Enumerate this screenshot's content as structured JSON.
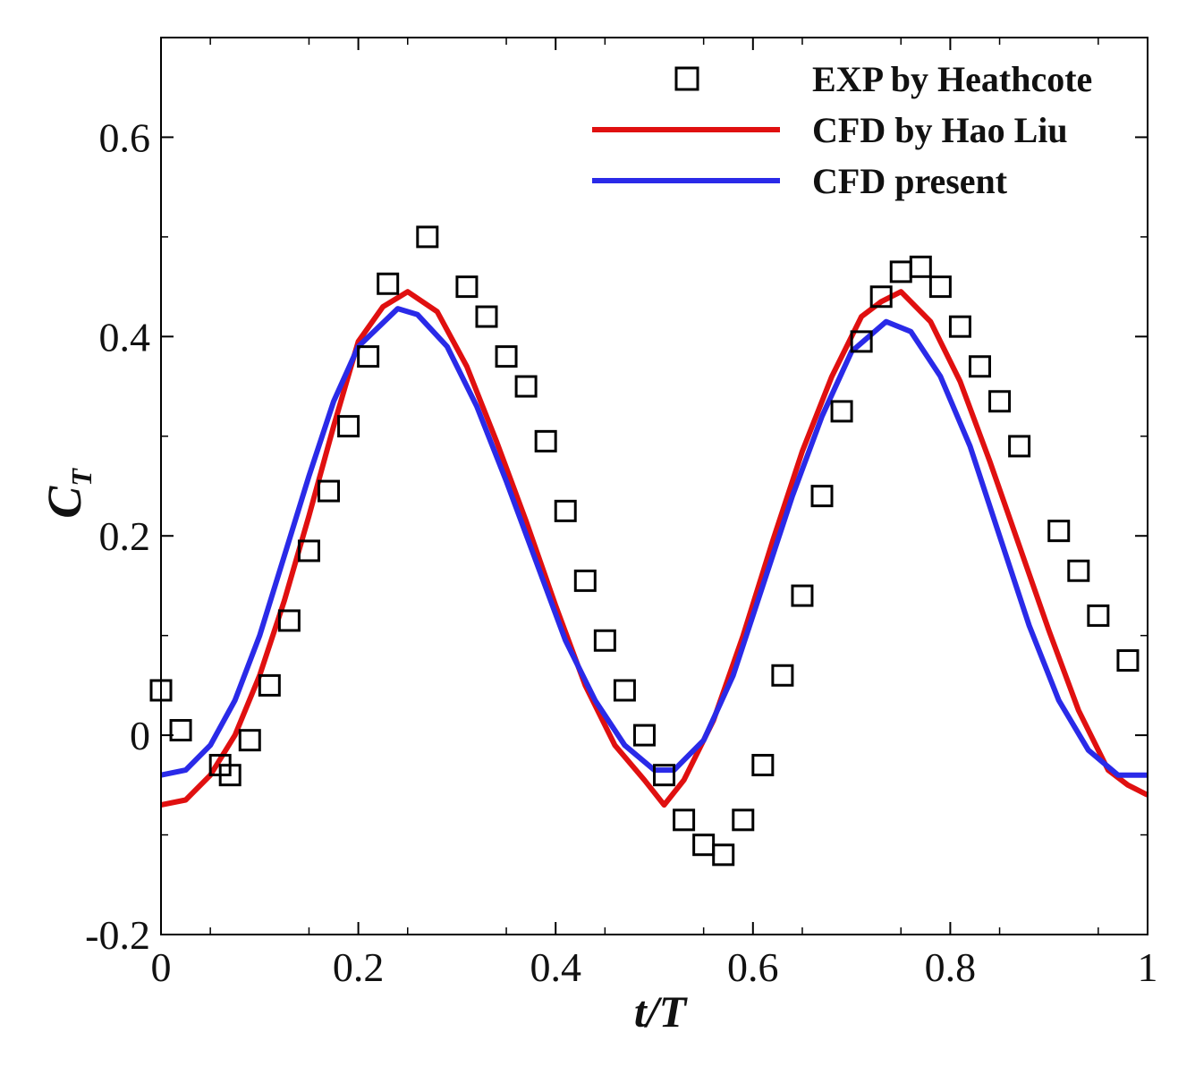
{
  "chart_data": {
    "type": "line",
    "title": "",
    "xlabel": "t/T",
    "ylabel_main": "C",
    "ylabel_sub": "T",
    "xlim": [
      0,
      1
    ],
    "ylim": [
      -0.2,
      0.7
    ],
    "xticks": [
      0,
      0.2,
      0.4,
      0.6,
      0.8,
      1
    ],
    "xtick_labels": [
      "0",
      "0.2",
      "0.4",
      "0.6",
      "0.8",
      "1"
    ],
    "yticks": [
      -0.2,
      0,
      0.2,
      0.4,
      0.6
    ],
    "ytick_labels": [
      "-0.2",
      "0",
      "0.2",
      "0.4",
      "0.6"
    ],
    "grid": false,
    "legend_position": "top-right",
    "series": [
      {
        "name": "EXP by Heathcote",
        "kind": "scatter",
        "marker": "square",
        "color": "#000000",
        "x": [
          0.0,
          0.02,
          0.06,
          0.07,
          0.09,
          0.11,
          0.13,
          0.15,
          0.17,
          0.19,
          0.21,
          0.23,
          0.27,
          0.31,
          0.33,
          0.35,
          0.37,
          0.39,
          0.41,
          0.43,
          0.45,
          0.47,
          0.49,
          0.51,
          0.53,
          0.55,
          0.57,
          0.59,
          0.61,
          0.63,
          0.65,
          0.67,
          0.69,
          0.71,
          0.73,
          0.75,
          0.77,
          0.79,
          0.81,
          0.83,
          0.85,
          0.87,
          0.91,
          0.93,
          0.95,
          0.98
        ],
        "y": [
          0.045,
          0.005,
          -0.03,
          -0.04,
          -0.005,
          0.05,
          0.115,
          0.185,
          0.245,
          0.31,
          0.38,
          0.453,
          0.5,
          0.45,
          0.42,
          0.38,
          0.35,
          0.295,
          0.225,
          0.155,
          0.095,
          0.045,
          0.0,
          -0.04,
          -0.085,
          -0.11,
          -0.12,
          -0.085,
          -0.03,
          0.06,
          0.14,
          0.24,
          0.325,
          0.395,
          0.44,
          0.465,
          0.47,
          0.45,
          0.41,
          0.37,
          0.335,
          0.29,
          0.205,
          0.165,
          0.12,
          0.075
        ]
      },
      {
        "name": "CFD by Hao Liu",
        "kind": "line",
        "color": "#e01010",
        "x": [
          0.0,
          0.025,
          0.05,
          0.075,
          0.1,
          0.125,
          0.15,
          0.175,
          0.2,
          0.225,
          0.25,
          0.28,
          0.31,
          0.34,
          0.37,
          0.4,
          0.43,
          0.46,
          0.49,
          0.51,
          0.53,
          0.56,
          0.59,
          0.62,
          0.65,
          0.68,
          0.71,
          0.73,
          0.75,
          0.78,
          0.81,
          0.84,
          0.87,
          0.9,
          0.93,
          0.96,
          0.98,
          1.0
        ],
        "y": [
          -0.07,
          -0.065,
          -0.04,
          0.0,
          0.06,
          0.135,
          0.22,
          0.31,
          0.395,
          0.43,
          0.445,
          0.425,
          0.37,
          0.295,
          0.215,
          0.13,
          0.05,
          -0.01,
          -0.045,
          -0.07,
          -0.045,
          0.015,
          0.1,
          0.195,
          0.285,
          0.36,
          0.42,
          0.435,
          0.445,
          0.415,
          0.355,
          0.275,
          0.19,
          0.105,
          0.025,
          -0.035,
          -0.05,
          -0.06
        ]
      },
      {
        "name": "CFD present",
        "kind": "line",
        "color": "#2a2ae8",
        "x": [
          0.0,
          0.025,
          0.05,
          0.075,
          0.1,
          0.125,
          0.15,
          0.175,
          0.2,
          0.24,
          0.26,
          0.29,
          0.32,
          0.35,
          0.38,
          0.41,
          0.44,
          0.47,
          0.5,
          0.52,
          0.55,
          0.58,
          0.61,
          0.64,
          0.67,
          0.7,
          0.735,
          0.76,
          0.79,
          0.82,
          0.85,
          0.88,
          0.91,
          0.94,
          0.97,
          1.0
        ],
        "y": [
          -0.04,
          -0.035,
          -0.01,
          0.035,
          0.1,
          0.18,
          0.26,
          0.335,
          0.39,
          0.428,
          0.422,
          0.39,
          0.33,
          0.255,
          0.175,
          0.095,
          0.035,
          -0.01,
          -0.035,
          -0.035,
          -0.005,
          0.06,
          0.15,
          0.24,
          0.32,
          0.385,
          0.415,
          0.405,
          0.36,
          0.29,
          0.2,
          0.11,
          0.035,
          -0.015,
          -0.04,
          -0.04
        ]
      }
    ]
  }
}
